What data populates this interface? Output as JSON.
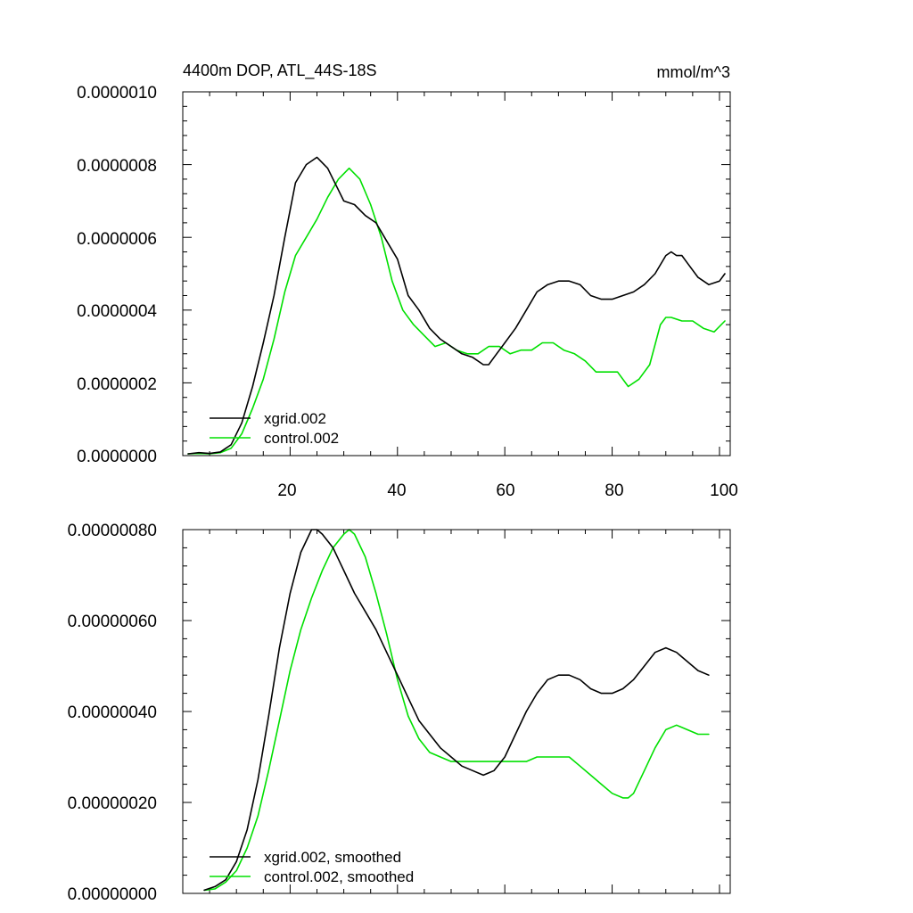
{
  "colors": {
    "xgrid": "#000000",
    "control": "#00e000"
  },
  "chart_data": [
    {
      "type": "line",
      "title": "4400m DOP, ATL_44S-18S",
      "units": "mmol/m^3",
      "xlim": [
        0,
        102
      ],
      "ylim": [
        0,
        1e-06
      ],
      "xticks": [
        20,
        40,
        60,
        80,
        100
      ],
      "xtick_labels": [
        "20",
        "40",
        "60",
        "80",
        "100"
      ],
      "yticks": [
        0,
        2e-07,
        4e-07,
        6e-07,
        8e-07,
        1e-06
      ],
      "ytick_labels": [
        "0.0000000",
        "0.0000002",
        "0.0000004",
        "0.0000006",
        "0.0000008",
        "0.0000010"
      ],
      "legend": "bottom-left",
      "series": [
        {
          "name": "xgrid.002",
          "color": "#000000",
          "x": [
            1,
            3,
            5,
            7,
            9,
            11,
            13,
            15,
            17,
            19,
            21,
            23,
            25,
            27,
            29,
            30,
            32,
            34,
            36,
            38,
            40,
            42,
            44,
            46,
            48,
            50,
            52,
            54,
            56,
            57,
            58,
            60,
            62,
            64,
            66,
            68,
            70,
            72,
            74,
            76,
            78,
            80,
            82,
            84,
            86,
            88,
            90,
            91,
            92,
            93,
            94,
            96,
            98,
            100,
            101
          ],
          "y": [
            5e-09,
            8e-09,
            6e-09,
            1e-08,
            3e-08,
            9e-08,
            1.9e-07,
            3.1e-07,
            4.4e-07,
            6e-07,
            7.5e-07,
            8e-07,
            8.2e-07,
            7.9e-07,
            7.3e-07,
            7e-07,
            6.9e-07,
            6.6e-07,
            6.4e-07,
            5.9e-07,
            5.4e-07,
            4.4e-07,
            4e-07,
            3.5e-07,
            3.2e-07,
            3e-07,
            2.8e-07,
            2.7e-07,
            2.5e-07,
            2.5e-07,
            2.7e-07,
            3.1e-07,
            3.5e-07,
            4e-07,
            4.5e-07,
            4.7e-07,
            4.8e-07,
            4.8e-07,
            4.7e-07,
            4.4e-07,
            4.3e-07,
            4.3e-07,
            4.4e-07,
            4.5e-07,
            4.7e-07,
            5e-07,
            5.5e-07,
            5.6e-07,
            5.5e-07,
            5.5e-07,
            5.3e-07,
            4.9e-07,
            4.7e-07,
            4.8e-07,
            5e-07
          ]
        },
        {
          "name": "control.002",
          "color": "#00e000",
          "x": [
            1,
            3,
            5,
            7,
            9,
            11,
            13,
            15,
            17,
            19,
            21,
            23,
            25,
            27,
            29,
            31,
            33,
            35,
            37,
            39,
            41,
            43,
            45,
            47,
            49,
            51,
            53,
            55,
            57,
            59,
            61,
            63,
            65,
            67,
            69,
            71,
            73,
            75,
            77,
            79,
            81,
            83,
            85,
            87,
            89,
            90,
            91,
            93,
            95,
            97,
            99,
            101
          ],
          "y": [
            5e-09,
            6e-09,
            5e-09,
            8e-09,
            2e-08,
            6e-08,
            1.3e-07,
            2.1e-07,
            3.2e-07,
            4.5e-07,
            5.5e-07,
            6e-07,
            6.5e-07,
            7.1e-07,
            7.6e-07,
            7.9e-07,
            7.6e-07,
            6.9e-07,
            6e-07,
            4.8e-07,
            4e-07,
            3.6e-07,
            3.3e-07,
            3e-07,
            3.1e-07,
            2.9e-07,
            2.8e-07,
            2.8e-07,
            3e-07,
            3e-07,
            2.8e-07,
            2.9e-07,
            2.9e-07,
            3.1e-07,
            3.1e-07,
            2.9e-07,
            2.8e-07,
            2.6e-07,
            2.3e-07,
            2.3e-07,
            2.3e-07,
            1.9e-07,
            2.1e-07,
            2.5e-07,
            3.6e-07,
            3.8e-07,
            3.8e-07,
            3.7e-07,
            3.7e-07,
            3.5e-07,
            3.4e-07,
            3.7e-07
          ]
        }
      ]
    },
    {
      "type": "line",
      "xlim": [
        0,
        102
      ],
      "ylim": [
        0,
        8e-07
      ],
      "xticks": [
        20,
        40,
        60,
        80,
        100
      ],
      "yticks": [
        0,
        2e-07,
        4e-07,
        6e-07,
        8e-07
      ],
      "ytick_labels": [
        "0.00000000",
        "0.00000020",
        "0.00000040",
        "0.00000060",
        "0.00000080"
      ],
      "legend": "bottom-left",
      "series": [
        {
          "name": "xgrid.002, smoothed",
          "color": "#000000",
          "x": [
            4,
            6,
            8,
            10,
            12,
            14,
            16,
            18,
            20,
            22,
            24,
            25,
            26,
            28,
            30,
            32,
            34,
            36,
            38,
            40,
            42,
            44,
            46,
            48,
            50,
            52,
            54,
            56,
            57,
            58,
            60,
            62,
            64,
            66,
            68,
            70,
            72,
            74,
            76,
            78,
            80,
            82,
            84,
            86,
            88,
            90,
            92,
            94,
            96,
            98
          ],
          "y": [
            7e-09,
            1.5e-08,
            3e-08,
            7e-08,
            1.4e-07,
            2.5e-07,
            3.9e-07,
            5.4e-07,
            6.6e-07,
            7.5e-07,
            8e-07,
            8e-07,
            7.9e-07,
            7.6e-07,
            7.1e-07,
            6.6e-07,
            6.2e-07,
            5.8e-07,
            5.3e-07,
            4.8e-07,
            4.3e-07,
            3.8e-07,
            3.5e-07,
            3.2e-07,
            3e-07,
            2.8e-07,
            2.7e-07,
            2.6e-07,
            2.65e-07,
            2.7e-07,
            3e-07,
            3.5e-07,
            4e-07,
            4.4e-07,
            4.7e-07,
            4.8e-07,
            4.8e-07,
            4.7e-07,
            4.5e-07,
            4.4e-07,
            4.4e-07,
            4.5e-07,
            4.7e-07,
            5e-07,
            5.3e-07,
            5.4e-07,
            5.3e-07,
            5.1e-07,
            4.9e-07,
            4.8e-07
          ]
        },
        {
          "name": "control.002, smoothed",
          "color": "#00e000",
          "x": [
            4,
            6,
            8,
            10,
            12,
            14,
            16,
            18,
            20,
            22,
            24,
            26,
            28,
            30,
            31,
            32,
            34,
            36,
            38,
            40,
            42,
            44,
            46,
            48,
            50,
            52,
            54,
            56,
            58,
            60,
            62,
            64,
            66,
            68,
            70,
            72,
            74,
            76,
            78,
            80,
            82,
            83,
            84,
            86,
            88,
            90,
            92,
            94,
            96,
            98
          ],
          "y": [
            7e-09,
            1e-08,
            2.5e-08,
            5e-08,
            1e-07,
            1.7e-07,
            2.7e-07,
            3.8e-07,
            4.9e-07,
            5.8e-07,
            6.5e-07,
            7.1e-07,
            7.6e-07,
            7.9e-07,
            8e-07,
            7.9e-07,
            7.4e-07,
            6.6e-07,
            5.7e-07,
            4.7e-07,
            3.9e-07,
            3.4e-07,
            3.1e-07,
            3e-07,
            2.9e-07,
            2.9e-07,
            2.9e-07,
            2.9e-07,
            2.9e-07,
            2.9e-07,
            2.9e-07,
            2.9e-07,
            3e-07,
            3e-07,
            3e-07,
            3e-07,
            2.8e-07,
            2.6e-07,
            2.4e-07,
            2.2e-07,
            2.1e-07,
            2.1e-07,
            2.2e-07,
            2.7e-07,
            3.2e-07,
            3.6e-07,
            3.7e-07,
            3.6e-07,
            3.5e-07,
            3.5e-07
          ]
        }
      ]
    }
  ]
}
